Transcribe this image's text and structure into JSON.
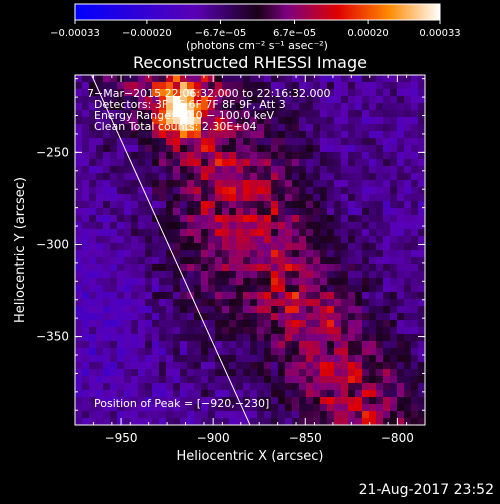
{
  "chart_data": {
    "type": "heatmap",
    "title": "Reconstructed RHESSI Image",
    "xlabel": "Heliocentric X (arcsec)",
    "ylabel": "Heliocentric Y (arcsec)",
    "xlim": [
      -975,
      -785
    ],
    "ylim": [
      -398,
      -208
    ],
    "x_ticks": [
      -950,
      -900,
      -850,
      -800
    ],
    "y_ticks": [
      -250,
      -300,
      -350
    ],
    "x_tick_labels": [
      "−950",
      "−900",
      "−850",
      "−800"
    ],
    "y_tick_labels": [
      "−250",
      "−300",
      "−350"
    ],
    "colorbar": {
      "min": -0.00033,
      "max": 0.00033,
      "ticks": [
        -0.00033,
        -0.0002,
        -6.7e-05,
        6.7e-05,
        0.0002,
        0.00033
      ],
      "tick_labels": [
        "−0.00033",
        "−0.00020",
        "−6.7e−05",
        "6.7e−05",
        "0.00020",
        "0.00033"
      ],
      "unit_label": "(photons cm⁻² s⁻¹ asec⁻²)"
    },
    "annotations": [
      "7−Mar−2015 22:06:32.000 to 22:16:32.000",
      "Detectors: 3F 5F 6F 7F 8F 9F, Att 3",
      "Energy Range: 50.0 − 100.0 keV",
      "Clean    Total counts: 2.30E+04"
    ],
    "peak_label": "Position of Peak = [−920,−230]",
    "peak": [
      -920,
      -230
    ],
    "limb_line": [
      [
        -966,
        -208
      ],
      [
        -880,
        -398
      ]
    ],
    "grid": false
  },
  "footer": {
    "timestamp": "21-Aug-2017 23:52"
  }
}
